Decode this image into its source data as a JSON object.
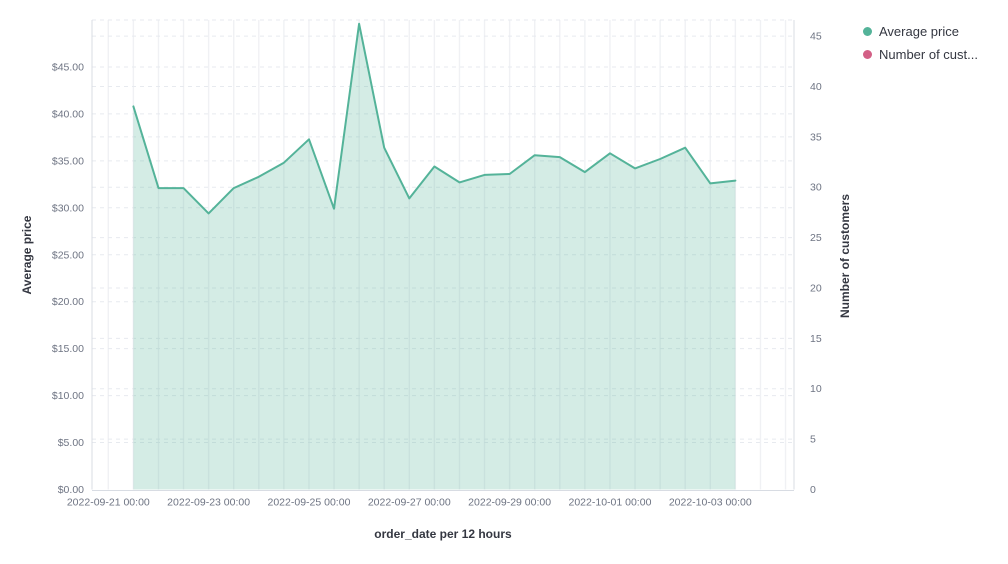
{
  "legend": {
    "position": "top-right",
    "items": [
      {
        "label": "Average price",
        "color": "#54B399"
      },
      {
        "label": "Number of cust...",
        "color": "#D36086"
      }
    ]
  },
  "axes": {
    "left_title": "Average price",
    "right_title": "Number of customers",
    "bottom_title": "order_date per 12 hours"
  },
  "chart_data": {
    "type": "area",
    "title": "",
    "xlabel": "order_date per 12 hours",
    "ylabel": "Average price",
    "ylabel_right": "Number of customers",
    "legend_position": "top-right",
    "grid": {
      "horizontal": "dashed, lines for both y-axes",
      "vertical": "solid, every 12 hours"
    },
    "x_tick_labels": [
      "2022-09-21 00:00",
      "2022-09-23 00:00",
      "2022-09-25 00:00",
      "2022-09-27 00:00",
      "2022-09-29 00:00",
      "2022-10-01 00:00",
      "2022-10-03 00:00"
    ],
    "x_tick_step_indices": [
      0,
      4,
      8,
      12,
      16,
      20,
      24
    ],
    "left_axis": {
      "label": "Average price",
      "tick_values": [
        0,
        5,
        10,
        15,
        20,
        25,
        30,
        35,
        40,
        45
      ],
      "tick_labels": [
        "$0.00",
        "$5.00",
        "$10.00",
        "$15.00",
        "$20.00",
        "$25.00",
        "$30.00",
        "$35.00",
        "$40.00",
        "$45.00"
      ],
      "range": [
        0,
        50
      ]
    },
    "right_axis": {
      "label": "Number of customers",
      "tick_values": [
        0,
        5,
        10,
        15,
        20,
        25,
        30,
        35,
        40,
        45
      ],
      "tick_labels": [
        "0",
        "5",
        "10",
        "15",
        "20",
        "25",
        "30",
        "35",
        "40",
        "45"
      ],
      "range": [
        0,
        46.6
      ]
    },
    "series": [
      {
        "name": "Average price",
        "axis": "left",
        "color": "#54B399",
        "style": "area",
        "start_step_index": 1,
        "x": [
          "2022-09-21 12:00",
          "2022-09-22 00:00",
          "2022-09-22 12:00",
          "2022-09-23 00:00",
          "2022-09-23 12:00",
          "2022-09-24 00:00",
          "2022-09-24 12:00",
          "2022-09-25 00:00",
          "2022-09-25 12:00",
          "2022-09-26 00:00",
          "2022-09-26 12:00",
          "2022-09-27 00:00",
          "2022-09-27 12:00",
          "2022-09-28 00:00",
          "2022-09-28 12:00",
          "2022-09-29 00:00",
          "2022-09-29 12:00",
          "2022-09-30 00:00",
          "2022-09-30 12:00",
          "2022-10-01 00:00",
          "2022-10-01 12:00",
          "2022-10-02 00:00",
          "2022-10-02 12:00",
          "2022-10-03 00:00",
          "2022-10-03 12:00"
        ],
        "values": [
          40.8,
          32.1,
          32.1,
          29.4,
          32.1,
          33.3,
          34.8,
          37.3,
          29.9,
          49.6,
          36.4,
          31.0,
          34.4,
          32.7,
          33.5,
          33.6,
          35.6,
          35.4,
          33.8,
          35.8,
          34.2,
          35.2,
          36.4,
          32.6,
          32.9
        ]
      },
      {
        "name": "Number of customers",
        "axis": "right",
        "color": "#D36086",
        "visible_in_plot": false,
        "values": []
      }
    ]
  },
  "colors": {
    "series_green": "#54B399",
    "series_pink": "#D36086",
    "area_fill_opacity": 0.25,
    "tick_text": "#6E7483",
    "title_text": "#343741",
    "grid_vertical": "#F0F1F4",
    "grid_horizontal": "#E7EAEF",
    "axis_line": "#D8DCE3"
  }
}
